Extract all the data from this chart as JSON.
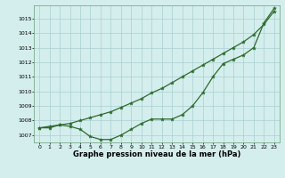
{
  "hours": [
    0,
    1,
    2,
    3,
    4,
    5,
    6,
    7,
    8,
    9,
    10,
    11,
    12,
    13,
    14,
    15,
    16,
    17,
    18,
    19,
    20,
    21,
    22,
    23
  ],
  "pressure_line1": [
    1007.5,
    1007.6,
    1007.7,
    1007.8,
    1008.0,
    1008.2,
    1008.4,
    1008.6,
    1008.9,
    1009.2,
    1009.5,
    1009.9,
    1010.2,
    1010.6,
    1011.0,
    1011.4,
    1011.8,
    1012.2,
    1012.6,
    1013.0,
    1013.4,
    1013.9,
    1014.6,
    1015.5
  ],
  "pressure_line2": [
    1007.5,
    1007.5,
    1007.7,
    1007.6,
    1007.4,
    1006.9,
    1006.7,
    1006.7,
    1007.0,
    1007.4,
    1007.8,
    1008.1,
    1008.1,
    1008.1,
    1008.4,
    1009.0,
    1009.9,
    1011.0,
    1011.9,
    1012.2,
    1012.5,
    1013.0,
    1014.7,
    1015.7
  ],
  "ylim": [
    1006.5,
    1015.9
  ],
  "yticks": [
    1007,
    1008,
    1009,
    1010,
    1011,
    1012,
    1013,
    1014,
    1015
  ],
  "xlim": [
    -0.5,
    23.5
  ],
  "xticks": [
    0,
    1,
    2,
    3,
    4,
    5,
    6,
    7,
    8,
    9,
    10,
    11,
    12,
    13,
    14,
    15,
    16,
    17,
    18,
    19,
    20,
    21,
    22,
    23
  ],
  "xlabel": "Graphe pression niveau de la mer (hPa)",
  "line_color": "#2d6a2d",
  "bg_color": "#d4eeed",
  "grid_color": "#aacfcf",
  "linewidth": 0.9,
  "markersize": 3.0,
  "title_fontsize": 5.5,
  "label_fontsize": 6.0
}
